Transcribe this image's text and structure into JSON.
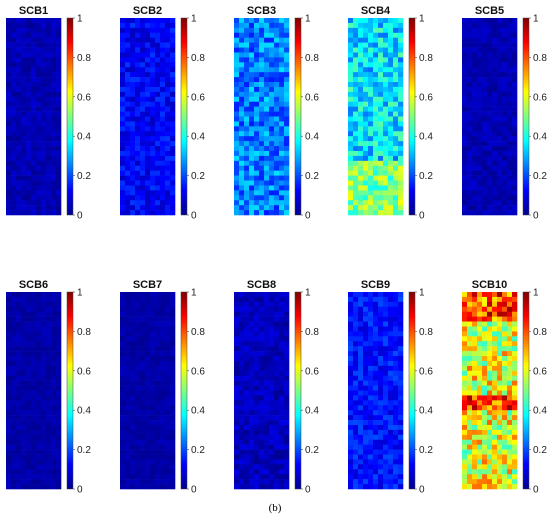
{
  "caption": "(b)",
  "colors": {
    "colormap": "jet",
    "low": "#00008f",
    "high": "#800000"
  },
  "chart_data": [
    {
      "type": "heatmap",
      "title": "SCB1",
      "colorbar_range": [
        0,
        1
      ],
      "colorbar_ticks": [
        "0",
        "0.2",
        "0.4",
        "0.6",
        "0.8",
        "1"
      ],
      "mean_value": 0.05,
      "variation": 0.03
    },
    {
      "type": "heatmap",
      "title": "SCB2",
      "colorbar_range": [
        0,
        1
      ],
      "colorbar_ticks": [
        "0",
        "0.2",
        "0.4",
        "0.6",
        "0.8",
        "1"
      ],
      "mean_value": 0.12,
      "variation": 0.06
    },
    {
      "type": "heatmap",
      "title": "SCB3",
      "colorbar_range": [
        0,
        1
      ],
      "colorbar_ticks": [
        "0",
        "0.2",
        "0.4",
        "0.6",
        "0.8",
        "1"
      ],
      "mean_value": 0.25,
      "variation": 0.1
    },
    {
      "type": "heatmap",
      "title": "SCB4",
      "colorbar_range": [
        0,
        1
      ],
      "colorbar_ticks": [
        "0",
        "0.2",
        "0.4",
        "0.6",
        "0.8",
        "1"
      ],
      "mean_value": 0.35,
      "variation": 0.12
    },
    {
      "type": "heatmap",
      "title": "SCB5",
      "colorbar_range": [
        0,
        1
      ],
      "colorbar_ticks": [
        "0",
        "0.2",
        "0.4",
        "0.6",
        "0.8",
        "1"
      ],
      "mean_value": 0.05,
      "variation": 0.03
    },
    {
      "type": "heatmap",
      "title": "SCB6",
      "colorbar_range": [
        0,
        1
      ],
      "colorbar_ticks": [
        "0",
        "0.2",
        "0.4",
        "0.6",
        "0.8",
        "1"
      ],
      "mean_value": 0.04,
      "variation": 0.02
    },
    {
      "type": "heatmap",
      "title": "SCB7",
      "colorbar_range": [
        0,
        1
      ],
      "colorbar_ticks": [
        "0",
        "0.2",
        "0.4",
        "0.6",
        "0.8",
        "1"
      ],
      "mean_value": 0.04,
      "variation": 0.02
    },
    {
      "type": "heatmap",
      "title": "SCB8",
      "colorbar_range": [
        0,
        1
      ],
      "colorbar_ticks": [
        "0",
        "0.2",
        "0.4",
        "0.6",
        "0.8",
        "1"
      ],
      "mean_value": 0.06,
      "variation": 0.04
    },
    {
      "type": "heatmap",
      "title": "SCB9",
      "colorbar_range": [
        0,
        1
      ],
      "colorbar_ticks": [
        "0",
        "0.2",
        "0.4",
        "0.6",
        "0.8",
        "1"
      ],
      "mean_value": 0.14,
      "variation": 0.06
    },
    {
      "type": "heatmap",
      "title": "SCB10",
      "colorbar_range": [
        0,
        1
      ],
      "colorbar_ticks": [
        "0",
        "0.2",
        "0.4",
        "0.6",
        "0.8",
        "1"
      ],
      "mean_value": 0.6,
      "variation": 0.18
    }
  ]
}
